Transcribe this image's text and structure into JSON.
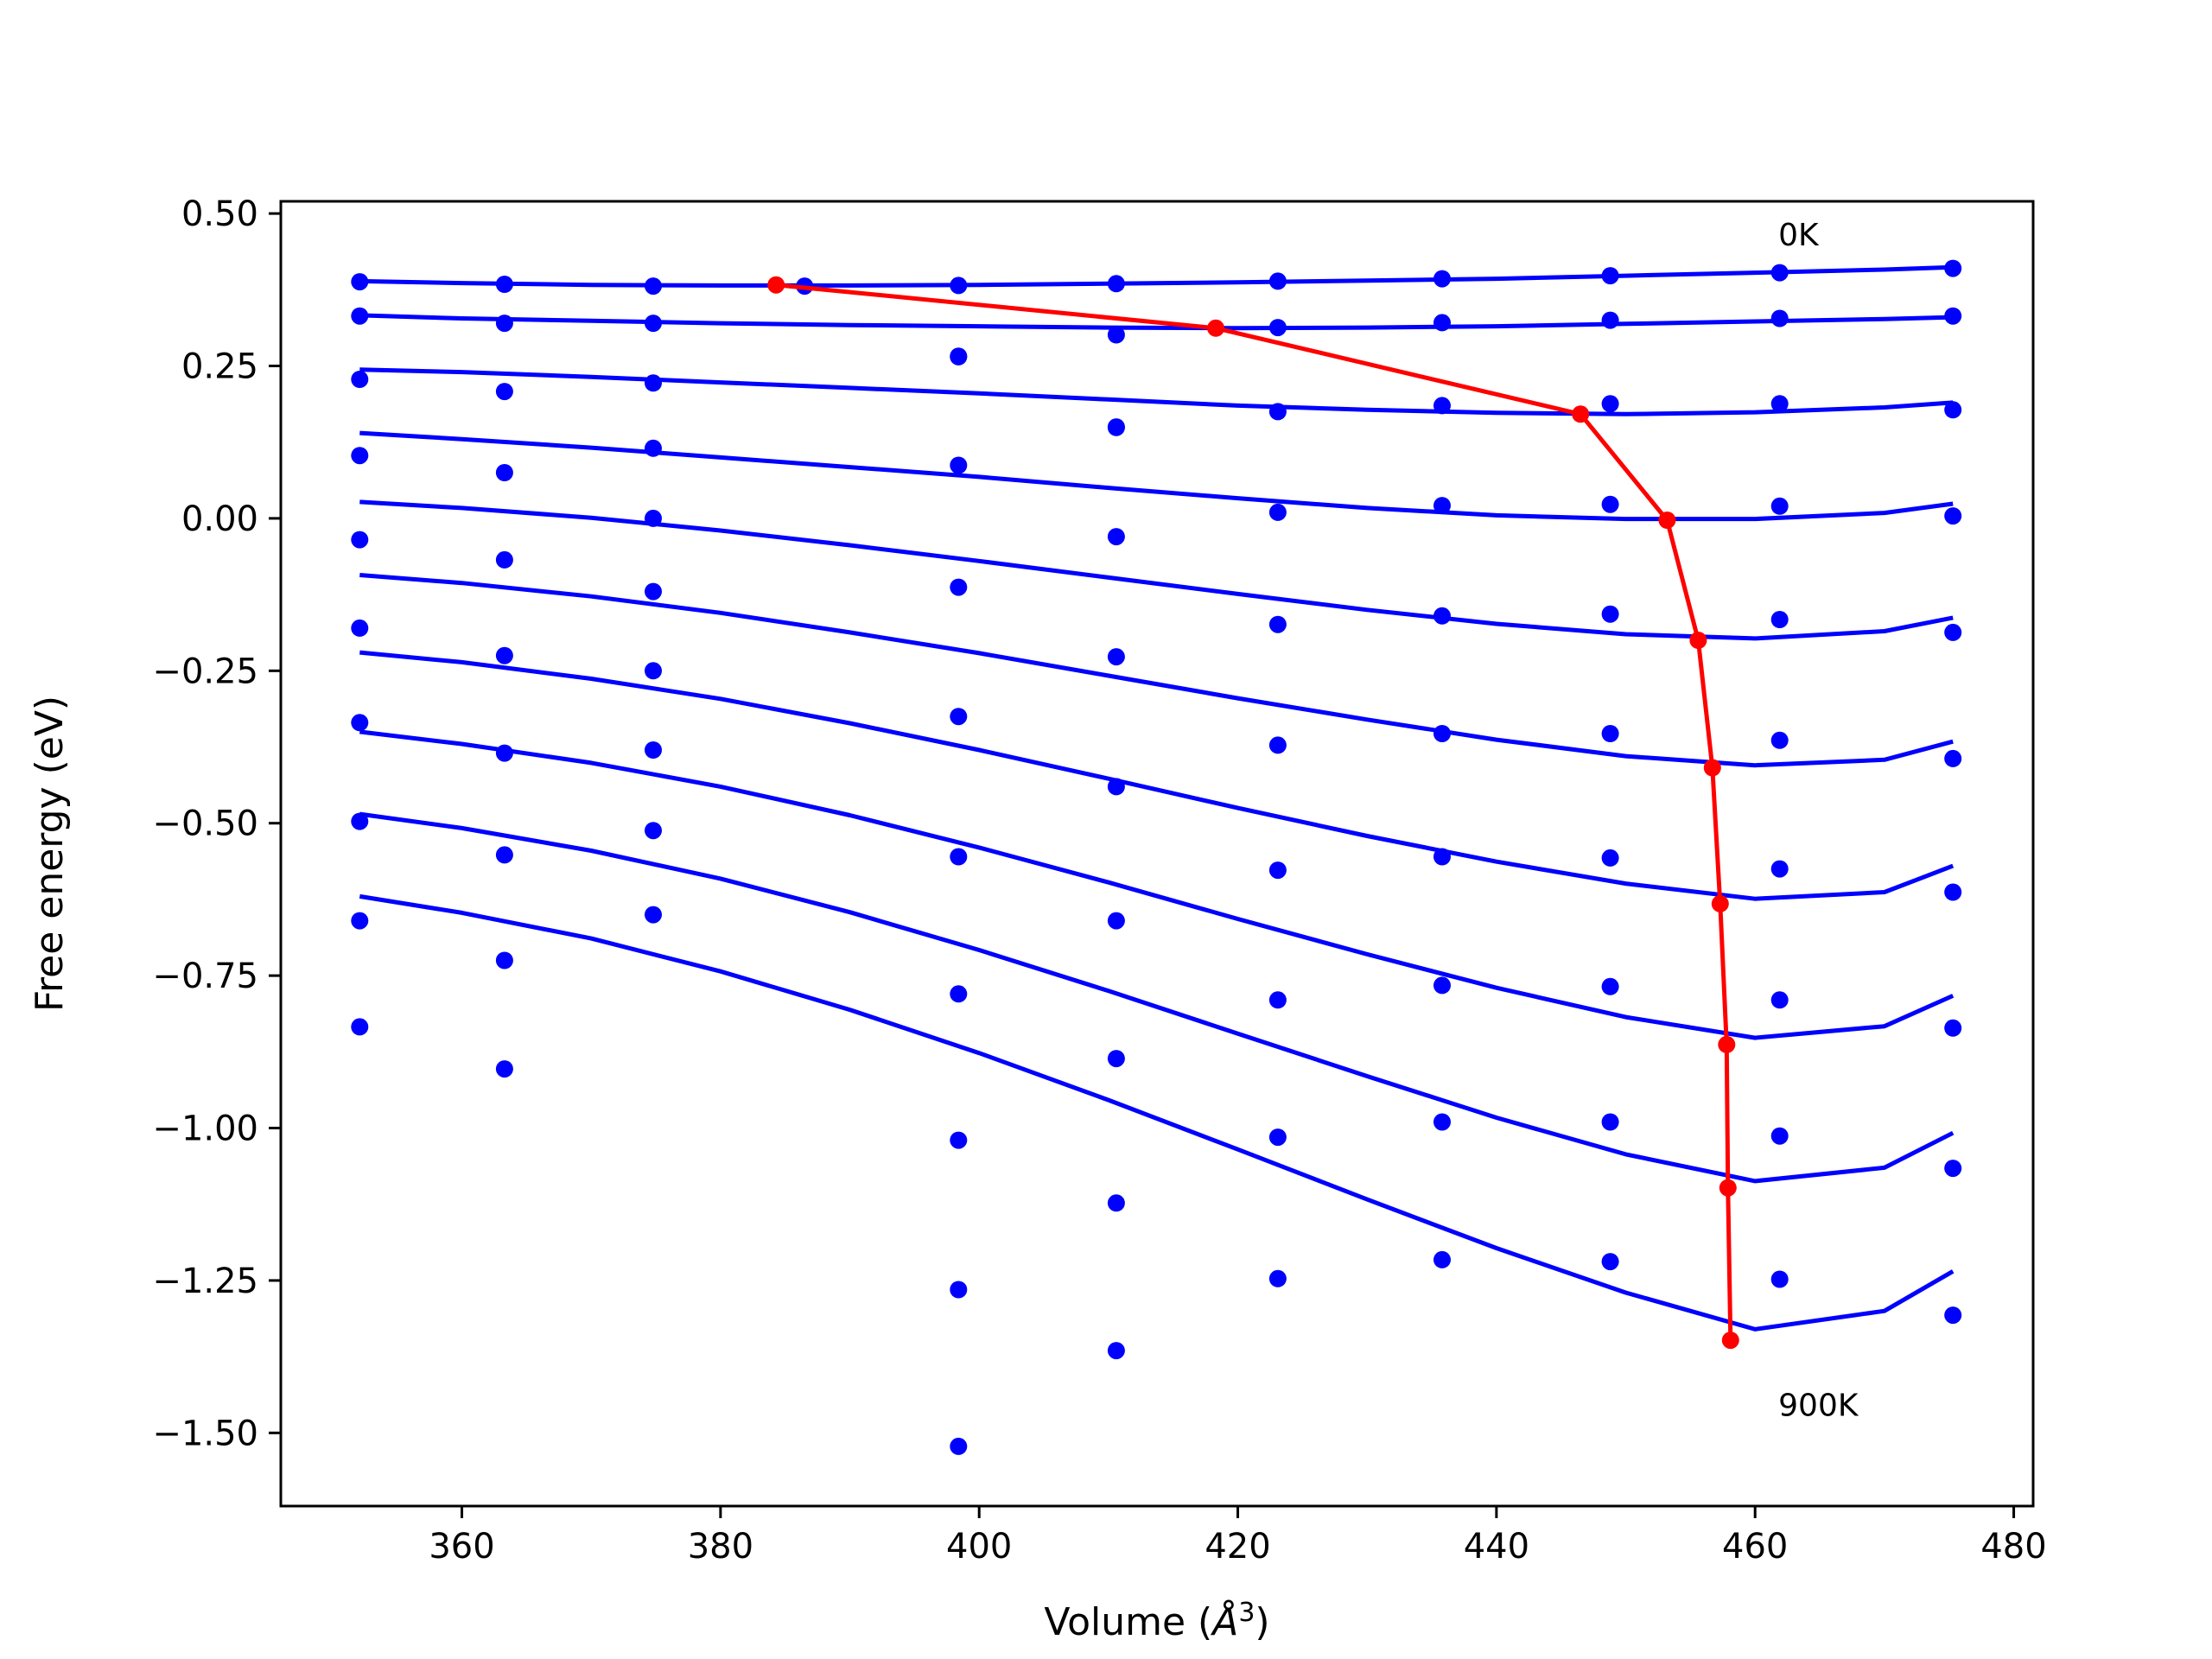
{
  "chart_data": {
    "type": "line",
    "xlabel": "Volume (",
    "xlabel_symbol": "Å",
    "xlabel_exp": "3",
    "xlabel_end": ")",
    "ylabel": "Free energy (eV)",
    "xlim": [
      346,
      481.5
    ],
    "ylim": [
      -1.62,
      0.52
    ],
    "xticks": [
      360,
      380,
      400,
      420,
      440,
      460,
      480
    ],
    "xtick_labels": [
      "360",
      "380",
      "400",
      "420",
      "440",
      "460",
      "480"
    ],
    "yticks": [
      0.5,
      0.25,
      0.0,
      -0.25,
      -0.5,
      -0.75,
      -1.0,
      -1.25,
      -1.5
    ],
    "ytick_labels": [
      "0.50",
      "0.25",
      "0.00",
      "−0.25",
      "−0.50",
      "−0.75",
      "−1.00",
      "−1.25",
      "−1.50"
    ],
    "annotations": [
      {
        "text": "0K",
        "x": 461.8,
        "y": 0.465
      },
      {
        "text": "900K",
        "x": 461.8,
        "y": -1.455
      }
    ],
    "colors": {
      "fit": "#0000ff",
      "points": "#0000ff",
      "minimum": "#ff0000"
    },
    "volumes": [
      352.1,
      363.3,
      374.8,
      398.4,
      410.6,
      423.1,
      435.8,
      448.8,
      461.9,
      475.3
    ],
    "series": [
      {
        "points": [
          0.388,
          0.384,
          0.381,
          0.382,
          0.385,
          0.389,
          0.393,
          0.398,
          0.403,
          0.41
        ],
        "curve": [
          [
            352.1,
            0.389
          ],
          [
            360,
            0.386
          ],
          [
            370,
            0.383
          ],
          [
            380,
            0.382
          ],
          [
            390,
            0.382
          ],
          [
            400,
            0.383
          ],
          [
            410,
            0.385
          ],
          [
            420,
            0.387
          ],
          [
            430,
            0.39
          ],
          [
            440,
            0.393
          ],
          [
            450,
            0.398
          ],
          [
            460,
            0.403
          ],
          [
            470,
            0.408
          ],
          [
            475.3,
            0.412
          ]
        ]
      },
      {
        "points": [
          0.332,
          0.32,
          0.32,
          0.266,
          0.301,
          0.313,
          0.321,
          0.325,
          0.328,
          0.332
        ],
        "curve": [
          [
            352.1,
            0.333
          ],
          [
            360,
            0.328
          ],
          [
            370,
            0.324
          ],
          [
            380,
            0.32
          ],
          [
            390,
            0.317
          ],
          [
            400,
            0.315
          ],
          [
            410,
            0.313
          ],
          [
            420,
            0.312
          ],
          [
            430,
            0.313
          ],
          [
            440,
            0.315
          ],
          [
            450,
            0.319
          ],
          [
            460,
            0.323
          ],
          [
            470,
            0.327
          ],
          [
            475.3,
            0.33
          ]
        ]
      },
      {
        "points": [
          0.228,
          0.208,
          0.222,
          0.265,
          0.149,
          0.175,
          0.185,
          0.188,
          0.188,
          0.178
        ],
        "curve": [
          [
            352.1,
            0.244
          ],
          [
            360,
            0.24
          ],
          [
            370,
            0.232
          ],
          [
            380,
            0.223
          ],
          [
            390,
            0.214
          ],
          [
            400,
            0.205
          ],
          [
            410,
            0.195
          ],
          [
            420,
            0.185
          ],
          [
            430,
            0.178
          ],
          [
            440,
            0.173
          ],
          [
            450,
            0.171
          ],
          [
            460,
            0.174
          ],
          [
            470,
            0.182
          ],
          [
            475.3,
            0.19
          ]
        ]
      },
      {
        "points": [
          0.103,
          0.075,
          0.115,
          0.087,
          0.15,
          0.01,
          0.021,
          0.023,
          0.02,
          0.004
        ],
        "curve": [
          [
            352.1,
            0.14
          ],
          [
            360,
            0.13
          ],
          [
            370,
            0.116
          ],
          [
            380,
            0.1
          ],
          [
            390,
            0.084
          ],
          [
            400,
            0.068
          ],
          [
            410,
            0.05
          ],
          [
            420,
            0.033
          ],
          [
            430,
            0.017
          ],
          [
            440,
            0.005
          ],
          [
            450,
            -0.001
          ],
          [
            460,
            -0.001
          ],
          [
            470,
            0.009
          ],
          [
            475.3,
            0.024
          ]
        ]
      },
      {
        "points": [
          -0.035,
          -0.068,
          0.0,
          -0.113,
          -0.03,
          -0.174,
          -0.16,
          -0.157,
          -0.166,
          -0.187
        ],
        "curve": [
          [
            352.1,
            0.027
          ],
          [
            360,
            0.017
          ],
          [
            370,
            0.001
          ],
          [
            380,
            -0.02
          ],
          [
            390,
            -0.044
          ],
          [
            400,
            -0.07
          ],
          [
            410,
            -0.097
          ],
          [
            420,
            -0.124
          ],
          [
            430,
            -0.15
          ],
          [
            440,
            -0.173
          ],
          [
            450,
            -0.19
          ],
          [
            460,
            -0.197
          ],
          [
            470,
            -0.185
          ],
          [
            475.3,
            -0.163
          ]
        ]
      },
      {
        "points": [
          -0.18,
          -0.225,
          -0.12,
          -0.325,
          -0.227,
          -0.372,
          -0.353,
          -0.353,
          -0.364,
          -0.394
        ],
        "curve": [
          [
            352.1,
            -0.093
          ],
          [
            360,
            -0.106
          ],
          [
            370,
            -0.128
          ],
          [
            380,
            -0.155
          ],
          [
            390,
            -0.187
          ],
          [
            400,
            -0.221
          ],
          [
            410,
            -0.258
          ],
          [
            420,
            -0.295
          ],
          [
            430,
            -0.33
          ],
          [
            440,
            -0.363
          ],
          [
            450,
            -0.39
          ],
          [
            460,
            -0.405
          ],
          [
            470,
            -0.396
          ],
          [
            475.3,
            -0.366
          ]
        ]
      },
      {
        "points": [
          -0.335,
          -0.385,
          -0.25,
          -0.555,
          -0.44,
          -0.577,
          -0.555,
          -0.557,
          -0.575,
          -0.613
        ],
        "curve": [
          [
            352.1,
            -0.22
          ],
          [
            360,
            -0.236
          ],
          [
            370,
            -0.263
          ],
          [
            380,
            -0.296
          ],
          [
            390,
            -0.336
          ],
          [
            400,
            -0.38
          ],
          [
            410,
            -0.427
          ],
          [
            420,
            -0.475
          ],
          [
            430,
            -0.521
          ],
          [
            440,
            -0.563
          ],
          [
            450,
            -0.599
          ],
          [
            460,
            -0.624
          ],
          [
            470,
            -0.613
          ],
          [
            475.3,
            -0.57
          ]
        ]
      },
      {
        "points": [
          -0.497,
          -0.552,
          -0.38,
          -0.78,
          -0.66,
          -0.79,
          -0.766,
          -0.768,
          -0.79,
          -0.836
        ],
        "curve": [
          [
            352.1,
            -0.35
          ],
          [
            360,
            -0.37
          ],
          [
            370,
            -0.401
          ],
          [
            380,
            -0.44
          ],
          [
            390,
            -0.487
          ],
          [
            400,
            -0.54
          ],
          [
            410,
            -0.597
          ],
          [
            420,
            -0.657
          ],
          [
            430,
            -0.715
          ],
          [
            440,
            -0.77
          ],
          [
            450,
            -0.818
          ],
          [
            460,
            -0.852
          ],
          [
            470,
            -0.833
          ],
          [
            475.3,
            -0.783
          ]
        ]
      },
      {
        "points": [
          -0.66,
          -0.725,
          -0.512,
          -1.02,
          -0.886,
          -1.015,
          -0.99,
          -0.99,
          -1.013,
          -1.066
        ],
        "curve": [
          [
            352.1,
            -0.485
          ],
          [
            360,
            -0.508
          ],
          [
            370,
            -0.545
          ],
          [
            380,
            -0.591
          ],
          [
            390,
            -0.646
          ],
          [
            400,
            -0.708
          ],
          [
            410,
            -0.775
          ],
          [
            420,
            -0.845
          ],
          [
            430,
            -0.915
          ],
          [
            440,
            -0.983
          ],
          [
            450,
            -1.043
          ],
          [
            460,
            -1.087
          ],
          [
            470,
            -1.065
          ],
          [
            475.3,
            -1.008
          ]
        ]
      },
      {
        "points": [
          -0.834,
          -0.903,
          -0.65,
          -1.265,
          -1.123,
          -1.247,
          -1.216,
          -1.219,
          -1.248,
          -1.307
        ],
        "curve": [
          [
            352.1,
            -0.62
          ],
          [
            360,
            -0.647
          ],
          [
            370,
            -0.689
          ],
          [
            380,
            -0.743
          ],
          [
            390,
            -0.806
          ],
          [
            400,
            -0.877
          ],
          [
            410,
            -0.954
          ],
          [
            420,
            -1.035
          ],
          [
            430,
            -1.117
          ],
          [
            440,
            -1.197
          ],
          [
            450,
            -1.27
          ],
          [
            460,
            -1.33
          ],
          [
            470,
            -1.3
          ],
          [
            475.3,
            -1.235
          ]
        ]
      }
    ],
    "extra_points": [
      {
        "x": 386.5,
        "y": 0.381
      },
      {
        "x": 410.6,
        "y": -1.365
      },
      {
        "x": 398.4,
        "y": -1.522
      }
    ],
    "minimum_path": {
      "x": [
        384.3,
        418.3,
        446.5,
        453.2,
        455.6,
        456.7,
        457.3,
        457.8,
        457.9,
        458.1
      ],
      "y": [
        0.383,
        0.312,
        0.171,
        -0.003,
        -0.2,
        -0.409,
        -0.632,
        -0.863,
        -1.098,
        -1.348
      ]
    }
  }
}
